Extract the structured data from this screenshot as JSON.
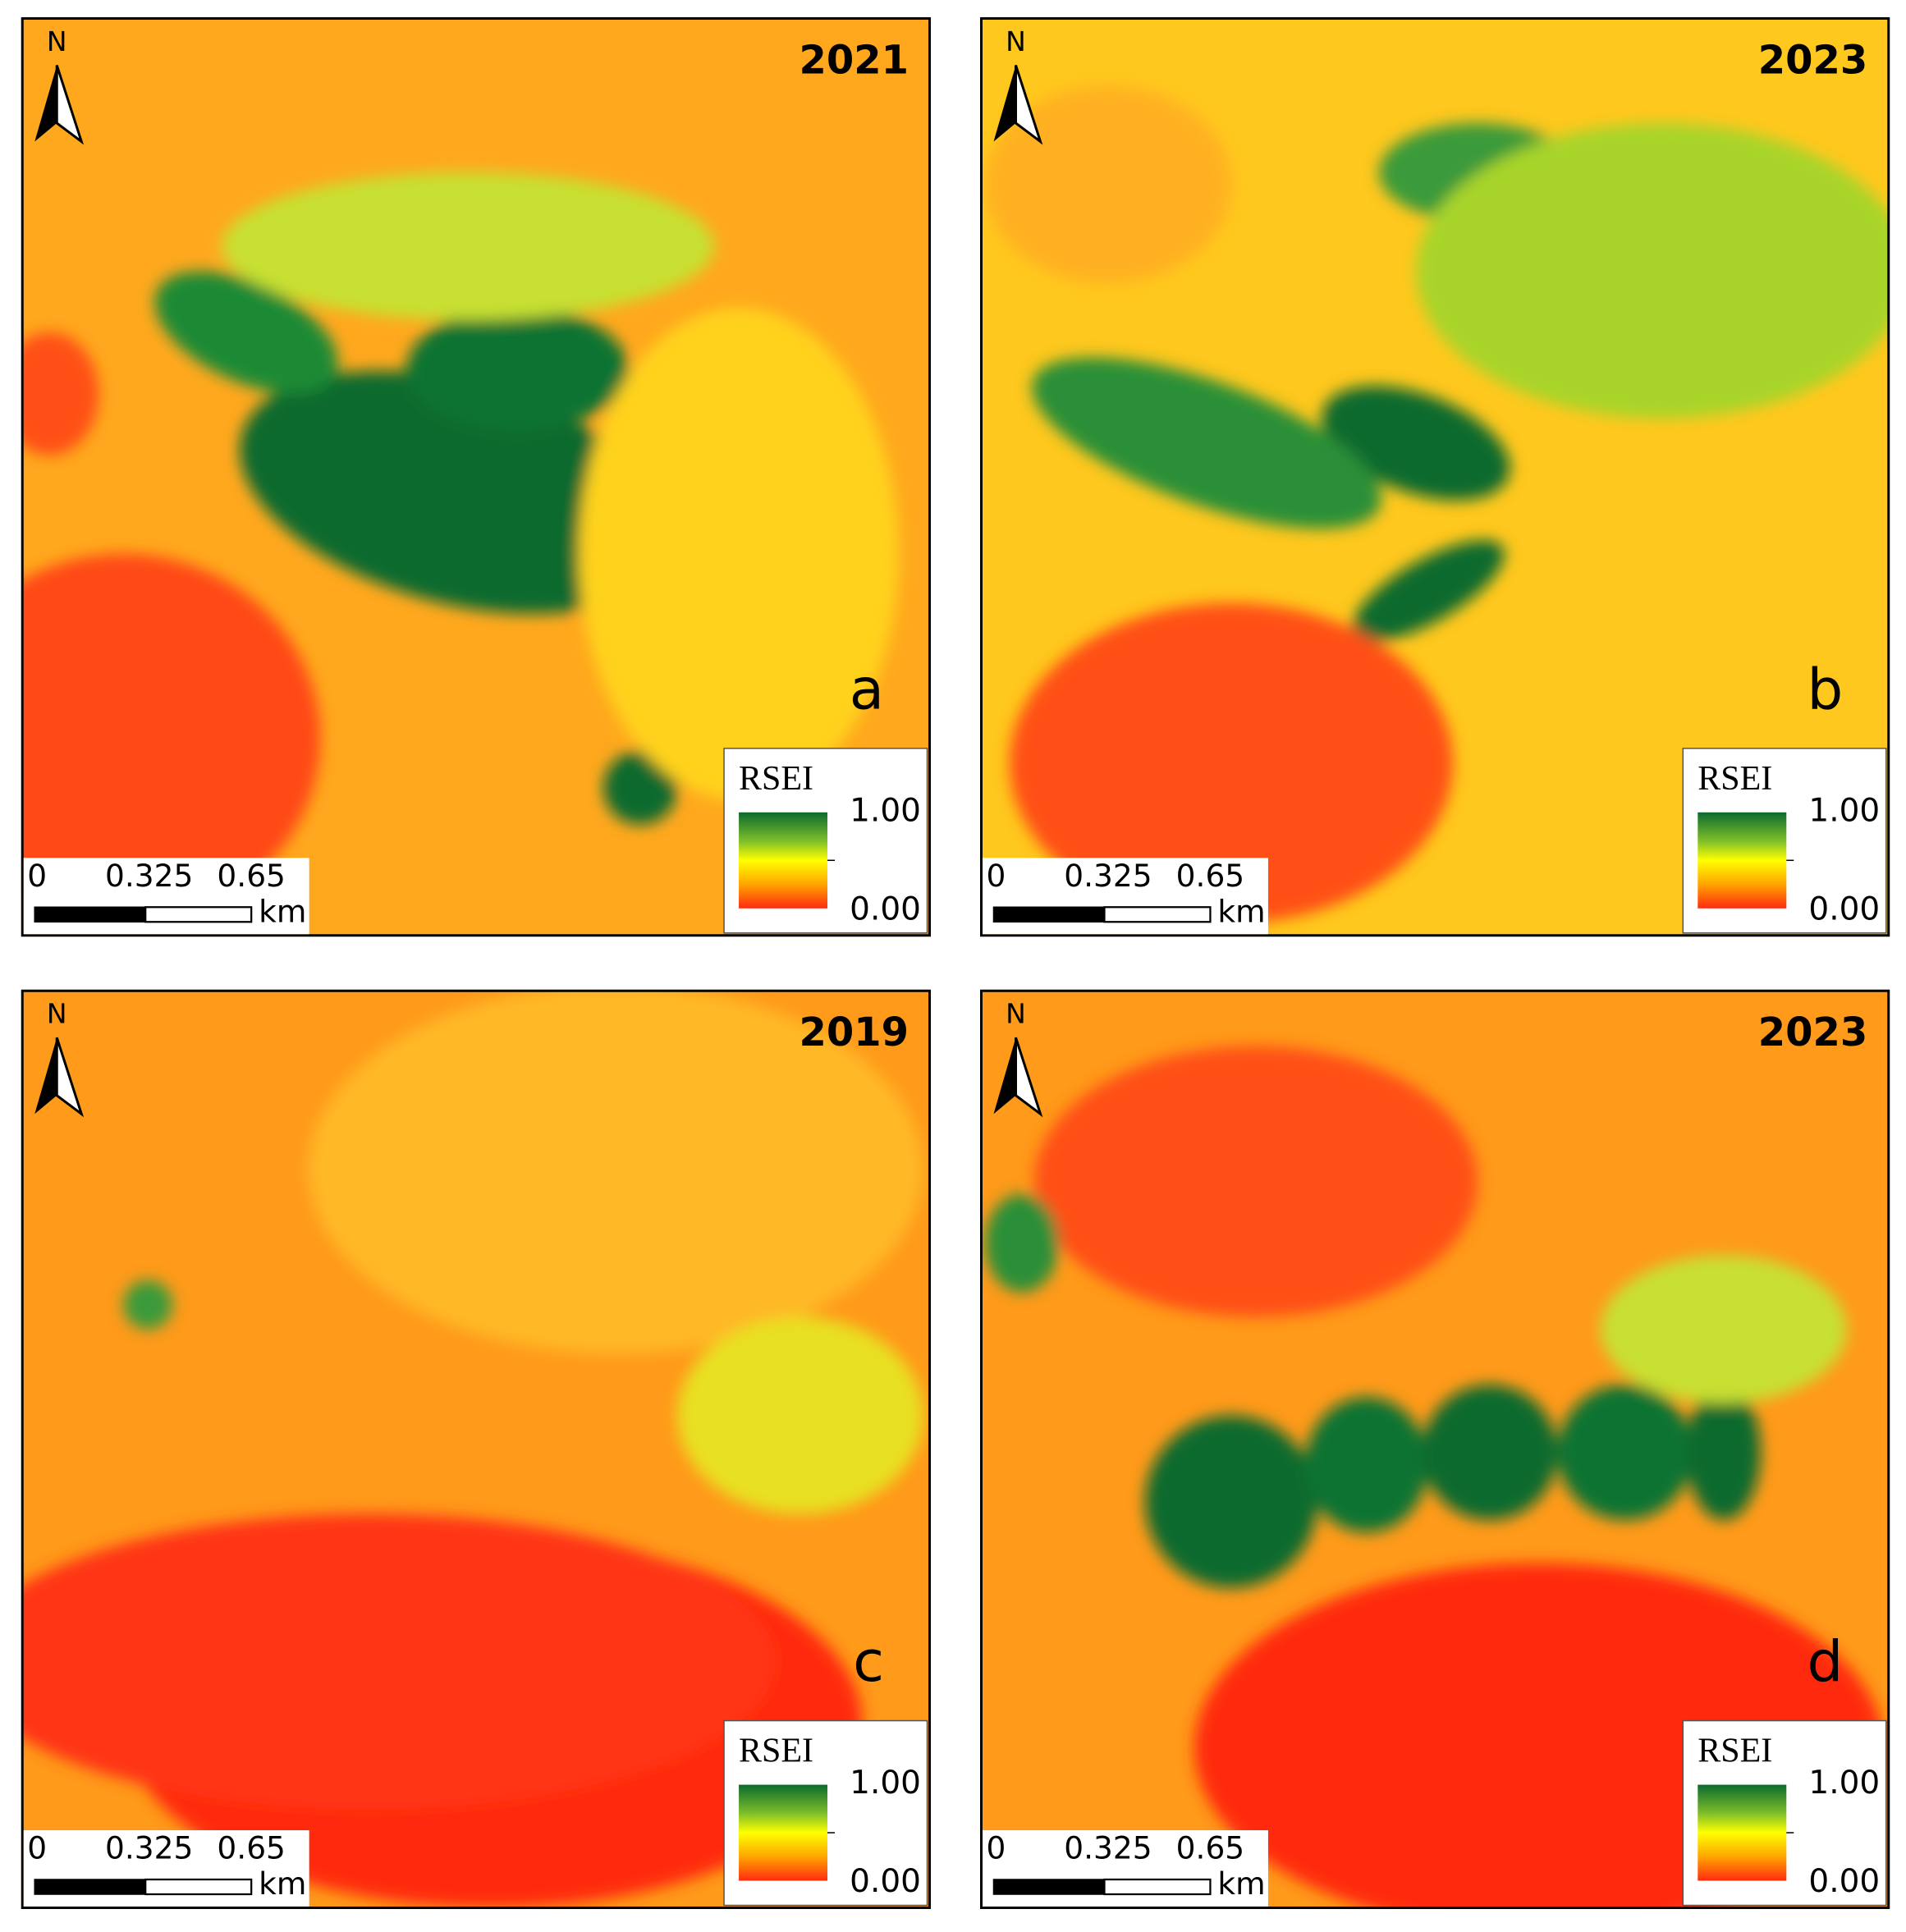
{
  "panels": [
    {
      "year": "2021",
      "letter": "a",
      "north": "N",
      "legend": {
        "title": "RSEI",
        "max": "1.00",
        "min": "0.00"
      },
      "scale": {
        "labels": [
          "0",
          "0.325",
          "0.65"
        ],
        "unit": "km"
      }
    },
    {
      "year": "2023",
      "letter": "b",
      "north": "N",
      "legend": {
        "title": "RSEI",
        "max": "1.00",
        "min": "0.00"
      },
      "scale": {
        "labels": [
          "0",
          "0.325",
          "0.65"
        ],
        "unit": "km"
      }
    },
    {
      "year": "2019",
      "letter": "c",
      "north": "N",
      "legend": {
        "title": "RSEI",
        "max": "1.00",
        "min": "0.00"
      },
      "scale": {
        "labels": [
          "0",
          "0.325",
          "0.65"
        ],
        "unit": "km"
      }
    },
    {
      "year": "2023",
      "letter": "d",
      "north": "N",
      "legend": {
        "title": "RSEI",
        "max": "1.00",
        "min": "0.00"
      },
      "scale": {
        "labels": [
          "0",
          "0.325",
          "0.65"
        ],
        "unit": "km"
      }
    }
  ]
}
